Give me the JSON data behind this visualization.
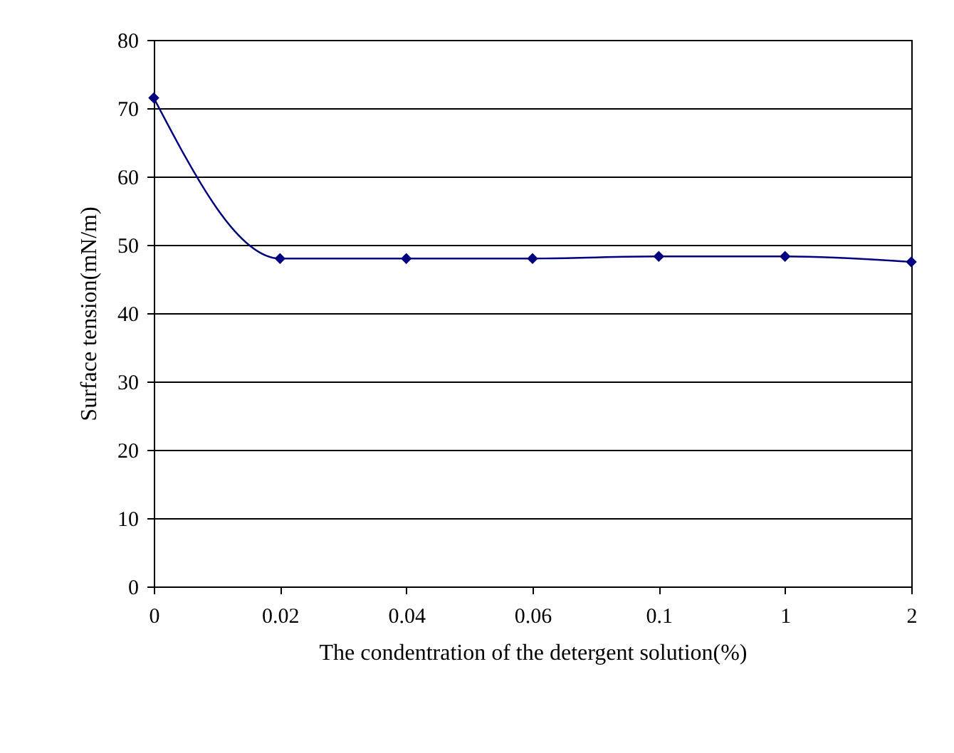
{
  "chart_data": {
    "type": "line",
    "xlabel": "The condentration of the detergent solution(%)",
    "ylabel": "Surface tension(mN/m)",
    "categories": [
      "0",
      "0.02",
      "0.04",
      "0.06",
      "0.1",
      "1",
      "2"
    ],
    "series": [
      {
        "color": "#000080",
        "values": [
          71.5,
          48,
          48,
          48,
          48.3,
          48.3,
          47.5
        ]
      }
    ],
    "ylim": [
      0,
      80
    ],
    "yticks": [
      0,
      10,
      20,
      30,
      40,
      50,
      60,
      70,
      80
    ],
    "grid": "y",
    "marker": "diamond",
    "line_style": "solid"
  }
}
